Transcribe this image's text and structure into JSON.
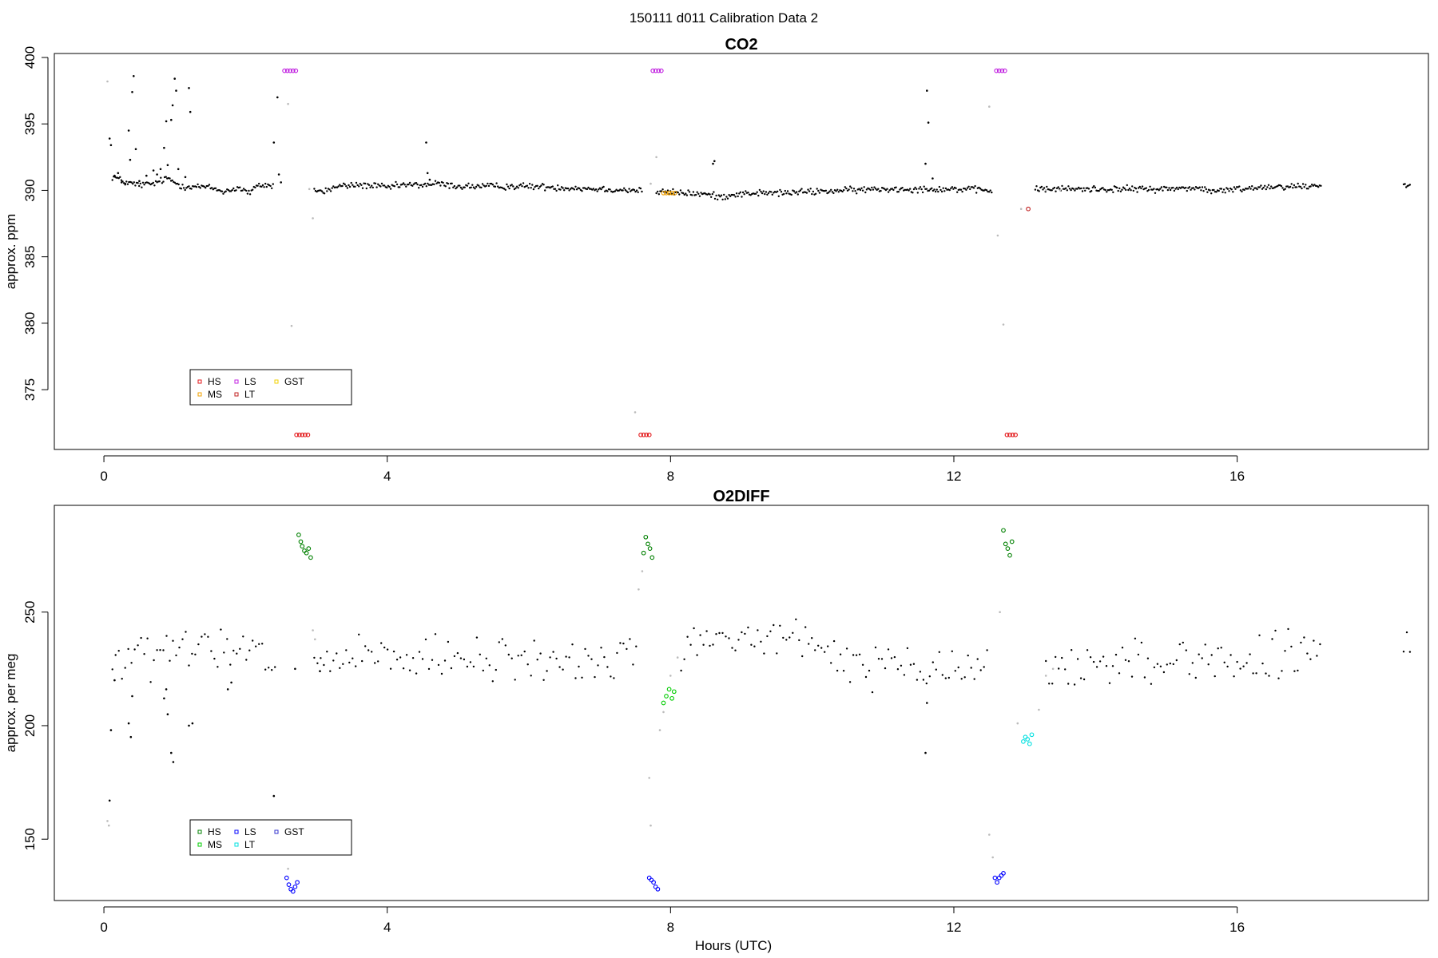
{
  "figure_title": "150111   d011   Calibration Data 2",
  "colors": {
    "HS_co2": "#e31a1c",
    "MS_co2": "#f0a000",
    "LS_co2": "#c020e0",
    "LT_co2": "#c02020",
    "GST_co2": "#f0d000",
    "HS_o2": "#008000",
    "MS_o2": "#00cc00",
    "LS_o2": "#0000ff",
    "LT_o2": "#00e0e0",
    "GST_o2": "#3030cc",
    "sample": "#000000",
    "flush": "#bbbbbb"
  },
  "chart_data": [
    {
      "type": "scatter",
      "title": "CO2",
      "xlabel": "",
      "ylabel": "approx. ppm",
      "xlim": [
        -0.7,
        18.7
      ],
      "ylim": [
        370.5,
        400.3
      ],
      "xticks": [
        0,
        4,
        8,
        12,
        16
      ],
      "yticks": [
        375,
        380,
        385,
        390,
        395,
        400
      ],
      "legend": {
        "placement": "bottom-left",
        "entries": [
          "HS",
          "LS",
          "GST",
          "MS",
          "LT"
        ]
      },
      "baseline": [
        [
          0.15,
          391.0
        ],
        [
          0.3,
          390.6
        ],
        [
          0.5,
          390.4
        ],
        [
          0.7,
          390.5
        ],
        [
          0.9,
          390.9
        ],
        [
          1.1,
          390.3
        ],
        [
          1.3,
          390.3
        ],
        [
          1.5,
          390.2
        ],
        [
          1.7,
          389.9
        ],
        [
          1.9,
          390.2
        ],
        [
          2.05,
          389.8
        ],
        [
          2.2,
          390.4
        ],
        [
          2.6,
          390.3
        ],
        [
          2.75,
          390.2
        ],
        [
          3.1,
          389.9
        ],
        [
          3.3,
          390.3
        ],
        [
          3.6,
          390.4
        ],
        [
          3.9,
          390.3
        ],
        [
          4.0,
          390.2
        ],
        [
          4.2,
          390.4
        ],
        [
          4.5,
          390.4
        ],
        [
          4.7,
          390.5
        ],
        [
          5.0,
          390.3
        ],
        [
          5.5,
          390.3
        ],
        [
          6.0,
          390.3
        ],
        [
          6.5,
          390.2
        ],
        [
          7.0,
          390.1
        ],
        [
          7.5,
          390.0
        ],
        [
          7.75,
          389.9
        ],
        [
          8.2,
          389.8
        ],
        [
          8.5,
          389.7
        ],
        [
          8.7,
          389.5
        ],
        [
          8.9,
          389.7
        ],
        [
          9.2,
          389.8
        ],
        [
          9.6,
          389.8
        ],
        [
          10.0,
          389.9
        ],
        [
          10.5,
          390.0
        ],
        [
          11.0,
          390.1
        ],
        [
          11.6,
          390.1
        ],
        [
          12.0,
          390.1
        ],
        [
          12.5,
          390.0
        ],
        [
          12.9,
          390.0
        ],
        [
          13.3,
          390.1
        ],
        [
          13.8,
          390.1
        ],
        [
          14.4,
          390.1
        ],
        [
          15.0,
          390.1
        ],
        [
          15.4,
          390.2
        ],
        [
          15.7,
          389.9
        ],
        [
          16.0,
          390.1
        ],
        [
          16.5,
          390.3
        ],
        [
          17.0,
          390.3
        ],
        [
          17.15,
          390.4
        ]
      ],
      "segments": [
        [
          0.12,
          2.4
        ],
        [
          2.97,
          7.6
        ],
        [
          7.8,
          12.55
        ],
        [
          13.15,
          17.2
        ],
        [
          18.35,
          18.45
        ]
      ],
      "series": [
        {
          "name": "HS",
          "marker": "circle",
          "color_key": "HS_co2",
          "points": [
            [
              2.72,
              371.6
            ],
            [
              2.76,
              371.6
            ],
            [
              2.8,
              371.6
            ],
            [
              2.84,
              371.6
            ],
            [
              2.88,
              371.6
            ],
            [
              7.58,
              371.6
            ],
            [
              7.62,
              371.6
            ],
            [
              7.66,
              371.6
            ],
            [
              7.7,
              371.6
            ],
            [
              12.75,
              371.6
            ],
            [
              12.79,
              371.6
            ],
            [
              12.83,
              371.6
            ],
            [
              12.87,
              371.6
            ]
          ]
        },
        {
          "name": "LS",
          "marker": "circle",
          "color_key": "LS_co2",
          "points": [
            [
              2.55,
              399.0
            ],
            [
              2.59,
              399.0
            ],
            [
              2.63,
              399.0
            ],
            [
              2.67,
              399.0
            ],
            [
              2.71,
              399.0
            ],
            [
              7.75,
              399.0
            ],
            [
              7.79,
              399.0
            ],
            [
              7.83,
              399.0
            ],
            [
              7.87,
              399.0
            ],
            [
              12.6,
              399.0
            ],
            [
              12.64,
              399.0
            ],
            [
              12.68,
              399.0
            ],
            [
              12.72,
              399.0
            ]
          ]
        },
        {
          "name": "MS",
          "marker": "circle",
          "color_key": "MS_co2",
          "points": [
            [
              7.9,
              389.8
            ],
            [
              7.94,
              389.8
            ],
            [
              7.98,
              389.8
            ],
            [
              8.02,
              389.8
            ],
            [
              8.06,
              389.8
            ]
          ]
        },
        {
          "name": "LT",
          "marker": "circle",
          "color_key": "LT_co2",
          "points": [
            [
              13.05,
              388.6
            ]
          ]
        },
        {
          "name": "GST",
          "marker": "circle",
          "color_key": "GST_co2",
          "points": []
        },
        {
          "name": "",
          "marker": "dot",
          "color_key": "sample",
          "points": [
            [
              0.08,
              393.9
            ],
            [
              0.1,
              393.4
            ],
            [
              0.15,
              391.1
            ],
            [
              0.2,
              391.3
            ],
            [
              0.25,
              390.6
            ],
            [
              0.3,
              390.5
            ],
            [
              0.35,
              394.5
            ],
            [
              0.37,
              392.3
            ],
            [
              0.4,
              397.4
            ],
            [
              0.42,
              398.6
            ],
            [
              0.45,
              393.1
            ],
            [
              0.5,
              390.7
            ],
            [
              0.6,
              391.1
            ],
            [
              0.7,
              391.5
            ],
            [
              0.75,
              391.2
            ],
            [
              0.8,
              391.6
            ],
            [
              0.85,
              393.2
            ],
            [
              0.88,
              395.2
            ],
            [
              0.9,
              391.9
            ],
            [
              0.95,
              395.3
            ],
            [
              0.97,
              396.4
            ],
            [
              1.0,
              398.4
            ],
            [
              1.02,
              397.5
            ],
            [
              1.05,
              391.6
            ],
            [
              1.15,
              391.0
            ],
            [
              1.2,
              397.7
            ],
            [
              1.22,
              395.9
            ],
            [
              2.4,
              393.6
            ],
            [
              2.45,
              397.0
            ],
            [
              2.47,
              391.2
            ],
            [
              2.5,
              390.6
            ],
            [
              4.55,
              393.6
            ],
            [
              4.57,
              391.3
            ],
            [
              4.6,
              390.8
            ],
            [
              8.6,
              392.0
            ],
            [
              8.62,
              392.2
            ],
            [
              11.6,
              392.0
            ],
            [
              11.62,
              397.5
            ],
            [
              11.64,
              395.1
            ],
            [
              11.7,
              390.9
            ]
          ]
        },
        {
          "name": "",
          "marker": "dot",
          "color_key": "flush",
          "points": [
            [
              0.05,
              398.2
            ],
            [
              2.6,
              396.5
            ],
            [
              2.9,
              390.1
            ],
            [
              2.95,
              387.9
            ],
            [
              2.65,
              379.8
            ],
            [
              7.5,
              373.3
            ],
            [
              7.8,
              392.5
            ],
            [
              12.5,
              396.3
            ],
            [
              12.7,
              379.9
            ],
            [
              12.62,
              386.6
            ],
            [
              12.95,
              388.6
            ],
            [
              13.3,
              390.0
            ],
            [
              13.5,
              390.0
            ],
            [
              7.72,
              390.5
            ]
          ]
        }
      ]
    },
    {
      "type": "scatter",
      "title": "O2DIFF",
      "xlabel": "Hours (UTC)",
      "ylabel": "approx. per meg",
      "xlim": [
        -0.7,
        18.7
      ],
      "ylim": [
        123,
        297
      ],
      "xticks": [
        0,
        4,
        8,
        12,
        16
      ],
      "yticks": [
        150,
        200,
        250
      ],
      "legend": {
        "placement": "bottom-left",
        "entries": [
          "HS",
          "LS",
          "GST",
          "MS",
          "LT"
        ]
      },
      "baseline": [
        [
          0.15,
          228
        ],
        [
          0.5,
          230
        ],
        [
          1.0,
          232
        ],
        [
          1.5,
          234
        ],
        [
          2.0,
          231
        ],
        [
          2.4,
          228
        ],
        [
          3.0,
          229
        ],
        [
          4.0,
          229
        ],
        [
          5.0,
          228
        ],
        [
          6.0,
          229
        ],
        [
          7.0,
          228
        ],
        [
          7.6,
          231
        ],
        [
          8.2,
          236
        ],
        [
          8.8,
          238
        ],
        [
          9.4,
          239
        ],
        [
          9.9,
          236
        ],
        [
          10.3,
          230
        ],
        [
          11.0,
          226
        ],
        [
          11.6,
          223
        ],
        [
          12.0,
          225
        ],
        [
          12.5,
          227
        ],
        [
          13.3,
          224
        ],
        [
          14.0,
          227
        ],
        [
          15.0,
          229
        ],
        [
          15.5,
          230
        ],
        [
          16.0,
          228
        ],
        [
          16.5,
          229
        ],
        [
          17.15,
          232
        ]
      ],
      "segments": [
        [
          0.12,
          2.45
        ],
        [
          2.97,
          7.55
        ],
        [
          8.15,
          12.5
        ],
        [
          13.3,
          17.2
        ],
        [
          18.35,
          18.45
        ]
      ],
      "series": [
        {
          "name": "HS",
          "marker": "circle",
          "color_key": "HS_o2",
          "points": [
            [
              2.75,
              284
            ],
            [
              2.78,
              281
            ],
            [
              2.8,
              279
            ],
            [
              2.83,
              277
            ],
            [
              2.86,
              276
            ],
            [
              2.89,
              278
            ],
            [
              2.92,
              274
            ],
            [
              7.62,
              276
            ],
            [
              7.65,
              283
            ],
            [
              7.68,
              280
            ],
            [
              7.71,
              278
            ],
            [
              7.74,
              274
            ],
            [
              12.7,
              286
            ],
            [
              12.73,
              280
            ],
            [
              12.76,
              278
            ],
            [
              12.79,
              275
            ],
            [
              12.82,
              281
            ]
          ]
        },
        {
          "name": "MS",
          "marker": "circle",
          "color_key": "MS_o2",
          "points": [
            [
              7.9,
              210
            ],
            [
              7.94,
              213
            ],
            [
              7.98,
              216
            ],
            [
              8.02,
              212
            ],
            [
              8.05,
              215
            ]
          ]
        },
        {
          "name": "LS",
          "marker": "circle",
          "color_key": "LS_o2",
          "points": [
            [
              2.58,
              133
            ],
            [
              2.61,
              130
            ],
            [
              2.64,
              128
            ],
            [
              2.67,
              127
            ],
            [
              2.7,
              129
            ],
            [
              2.73,
              131
            ],
            [
              7.7,
              133
            ],
            [
              7.73,
              132
            ],
            [
              7.76,
              131
            ],
            [
              7.79,
              129
            ],
            [
              7.82,
              128
            ],
            [
              12.58,
              133
            ],
            [
              12.61,
              131
            ],
            [
              12.64,
              133
            ],
            [
              12.67,
              134
            ],
            [
              12.7,
              135
            ]
          ]
        },
        {
          "name": "LT",
          "marker": "circle",
          "color_key": "LT_o2",
          "points": [
            [
              12.98,
              193
            ],
            [
              13.01,
              195
            ],
            [
              13.04,
              194
            ],
            [
              13.07,
              192
            ],
            [
              13.1,
              196
            ]
          ]
        },
        {
          "name": "GST",
          "marker": "circle",
          "color_key": "GST_o2",
          "points": []
        },
        {
          "name": "",
          "marker": "dot",
          "color_key": "sample",
          "points": [
            [
              0.08,
              167
            ],
            [
              0.1,
              198
            ],
            [
              0.15,
              220
            ],
            [
              0.35,
              201
            ],
            [
              0.38,
              195
            ],
            [
              0.4,
              213
            ],
            [
              0.9,
              205
            ],
            [
              0.95,
              188
            ],
            [
              0.98,
              184
            ],
            [
              1.2,
              200
            ],
            [
              1.25,
              201
            ],
            [
              0.85,
              212
            ],
            [
              0.88,
              216
            ],
            [
              1.75,
              216
            ],
            [
              1.8,
              219
            ],
            [
              2.4,
              169
            ],
            [
              2.45,
              155
            ],
            [
              11.6,
              188
            ],
            [
              11.62,
              210
            ],
            [
              2.7,
              225
            ],
            [
              3.05,
              224
            ]
          ]
        },
        {
          "name": "",
          "marker": "dot",
          "color_key": "flush",
          "points": [
            [
              0.05,
              158
            ],
            [
              0.07,
              156
            ],
            [
              2.6,
              137
            ],
            [
              2.95,
              242
            ],
            [
              2.98,
              238
            ],
            [
              7.55,
              260
            ],
            [
              7.6,
              268
            ],
            [
              7.7,
              177
            ],
            [
              7.72,
              156
            ],
            [
              7.85,
              198
            ],
            [
              7.9,
              206
            ],
            [
              8.0,
              222
            ],
            [
              8.1,
              230
            ],
            [
              12.5,
              152
            ],
            [
              12.55,
              142
            ],
            [
              12.65,
              250
            ],
            [
              12.9,
              201
            ],
            [
              13.2,
              207
            ],
            [
              13.3,
              222
            ],
            [
              13.4,
              225
            ]
          ]
        }
      ]
    }
  ]
}
